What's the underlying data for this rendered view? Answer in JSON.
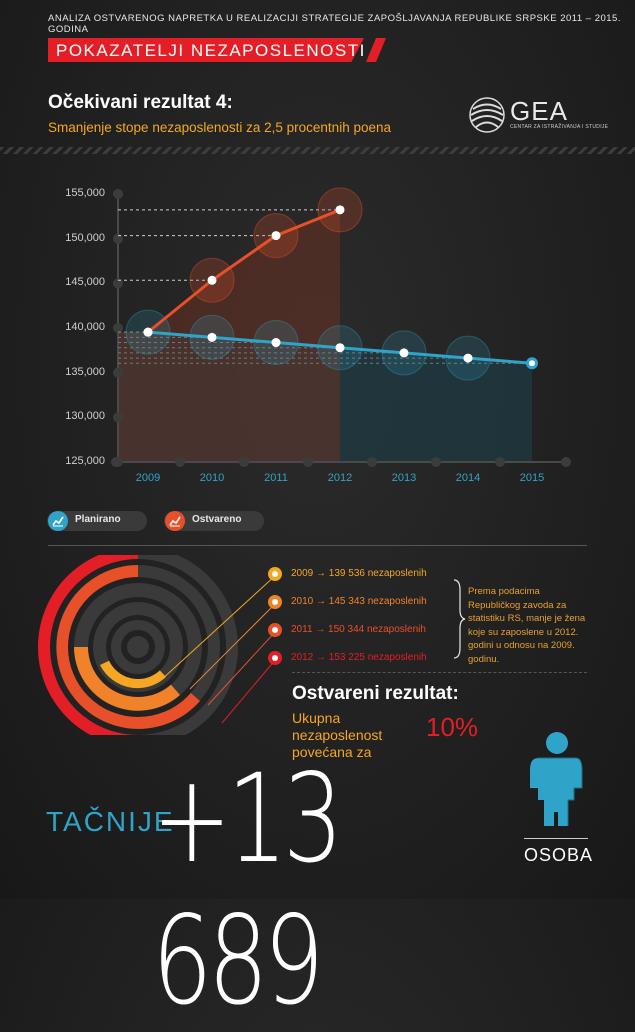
{
  "header": {
    "title": "ANALIZA OSTVARENOG NAPRETKA U REALIZACIJI STRATEGIJE ZAPOŠLJAVANJA REPUBLIKE SRPSKE 2011 – 2015. GODINA",
    "banner": "POKAZATELJI NEZAPOSLENOSTI"
  },
  "expected": {
    "title": "Očekivani rezultat 4:",
    "subtitle": "Smanjenje stope nezaposlenosti za 2,5 procentnih poena"
  },
  "logo": {
    "name": "GEA",
    "tagline": "CENTAR ZA ISTRAŽIVANJA I STUDIJE"
  },
  "colors": {
    "background": "#222222",
    "planned": "#2fa4c8",
    "actual": "#e8502a",
    "accent_red": "#e41e26",
    "accent_orange": "#f5a623"
  },
  "chart_data": {
    "type": "line",
    "x": [
      2009,
      2010,
      2011,
      2012,
      2013,
      2014,
      2015
    ],
    "ylim": [
      125000,
      155000
    ],
    "yticks": [
      "125,000",
      "130,000",
      "135,000",
      "140,000",
      "145,000",
      "150,000",
      "155,000"
    ],
    "series": [
      {
        "name": "Planirano",
        "color": "#2fa4c8",
        "values": [
          139536,
          138955,
          138374,
          137793,
          137212,
          136631,
          136050
        ]
      },
      {
        "name": "Ostvareno",
        "color": "#e8502a",
        "values": [
          139536,
          145343,
          150344,
          153225,
          null,
          null,
          null
        ]
      }
    ],
    "legend": "bottom-left",
    "grid": false
  },
  "legend": {
    "planned_label": "Planirano",
    "actual_label": "Ostvareno"
  },
  "info": {
    "items": [
      {
        "text": "2009 → 139 536 nezaposlenih",
        "color": "#f5a623"
      },
      {
        "text": "2010  → 145 343 nezaposlenih",
        "color": "#f0822a"
      },
      {
        "text": "2011  → 150 344 nezaposlenih",
        "color": "#e8502a"
      },
      {
        "text": "2012  → 153 225 nezaposlenih",
        "color": "#e41e26"
      }
    ],
    "note": "Prema podacima Republičkog zavoda za statistiku RS, manje je žena koje su zaposlene u 2012. godini u odnosu na 2009. godinu."
  },
  "result": {
    "title": "Ostvareni rezultat:",
    "subtitle": "Ukupna nezaposlenost povećana za",
    "percent": "10%",
    "prefix": "TAČNIJE",
    "number": "+13 689",
    "unit": "OSOBA"
  }
}
